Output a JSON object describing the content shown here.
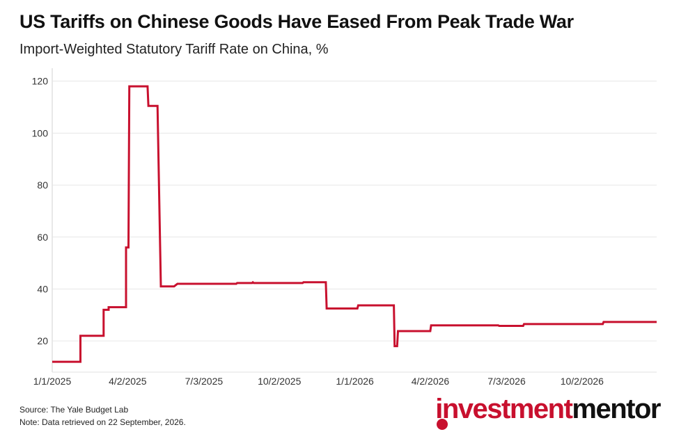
{
  "header": {
    "title": "US Tariffs on Chinese Goods Have Eased From Peak Trade War",
    "subtitle": "Import-Weighted Statutory Tariff Rate on China, %"
  },
  "footer": {
    "source": "Source: The Yale Budget Lab",
    "note": "Note: Data retrieved on 22 September, 2026."
  },
  "logo": {
    "text_part1": "investment",
    "text_part2": "mentor",
    "brand_color": "#c8102e"
  },
  "chart_data": {
    "type": "line",
    "line_color": "#c8102e",
    "ylim": [
      8,
      125
    ],
    "yticks": [
      20,
      40,
      60,
      80,
      100,
      120
    ],
    "xlim": [
      "2025-01-01",
      "2026-12-31"
    ],
    "xticks": [
      {
        "date": "2025-01-01",
        "label": "1/1/2025"
      },
      {
        "date": "2025-04-02",
        "label": "4/2/2025"
      },
      {
        "date": "2025-07-03",
        "label": "7/3/2025"
      },
      {
        "date": "2025-10-02",
        "label": "10/2/2025"
      },
      {
        "date": "2026-01-01",
        "label": "1/1/2026"
      },
      {
        "date": "2026-04-02",
        "label": "4/2/2026"
      },
      {
        "date": "2026-07-03",
        "label": "7/3/2026"
      },
      {
        "date": "2026-10-02",
        "label": "10/2/2026"
      }
    ],
    "grid": true,
    "series": [
      {
        "points": [
          [
            "2025-01-01",
            12
          ],
          [
            "2025-02-04",
            12
          ],
          [
            "2025-02-04",
            22
          ],
          [
            "2025-03-04",
            22
          ],
          [
            "2025-03-04",
            32
          ],
          [
            "2025-03-10",
            32
          ],
          [
            "2025-03-10",
            33
          ],
          [
            "2025-03-31",
            33
          ],
          [
            "2025-03-31",
            56
          ],
          [
            "2025-04-03",
            56
          ],
          [
            "2025-04-04",
            118
          ],
          [
            "2025-04-26",
            118
          ],
          [
            "2025-04-27",
            110.5
          ],
          [
            "2025-05-08",
            110.5
          ],
          [
            "2025-05-12",
            41
          ],
          [
            "2025-05-28",
            41
          ],
          [
            "2025-06-01",
            42
          ],
          [
            "2025-08-11",
            42
          ],
          [
            "2025-08-12",
            42.3
          ],
          [
            "2025-08-30",
            42.3
          ],
          [
            "2025-08-31",
            42.6
          ],
          [
            "2025-09-01",
            42.3
          ],
          [
            "2025-10-30",
            42.3
          ],
          [
            "2025-10-31",
            42.6
          ],
          [
            "2025-11-27",
            42.6
          ],
          [
            "2025-11-28",
            32.5
          ],
          [
            "2026-01-04",
            32.5
          ],
          [
            "2026-01-05",
            33.7
          ],
          [
            "2026-02-17",
            33.7
          ],
          [
            "2026-02-18",
            18
          ],
          [
            "2026-02-21",
            18
          ],
          [
            "2026-02-22",
            23.8
          ],
          [
            "2026-04-02",
            23.8
          ],
          [
            "2026-04-03",
            26
          ],
          [
            "2026-06-23",
            26
          ],
          [
            "2026-06-24",
            25.8
          ],
          [
            "2026-07-23",
            25.8
          ],
          [
            "2026-07-24",
            26.5
          ],
          [
            "2026-10-27",
            26.5
          ],
          [
            "2026-10-28",
            27.3
          ],
          [
            "2026-12-31",
            27.3
          ]
        ]
      }
    ]
  }
}
